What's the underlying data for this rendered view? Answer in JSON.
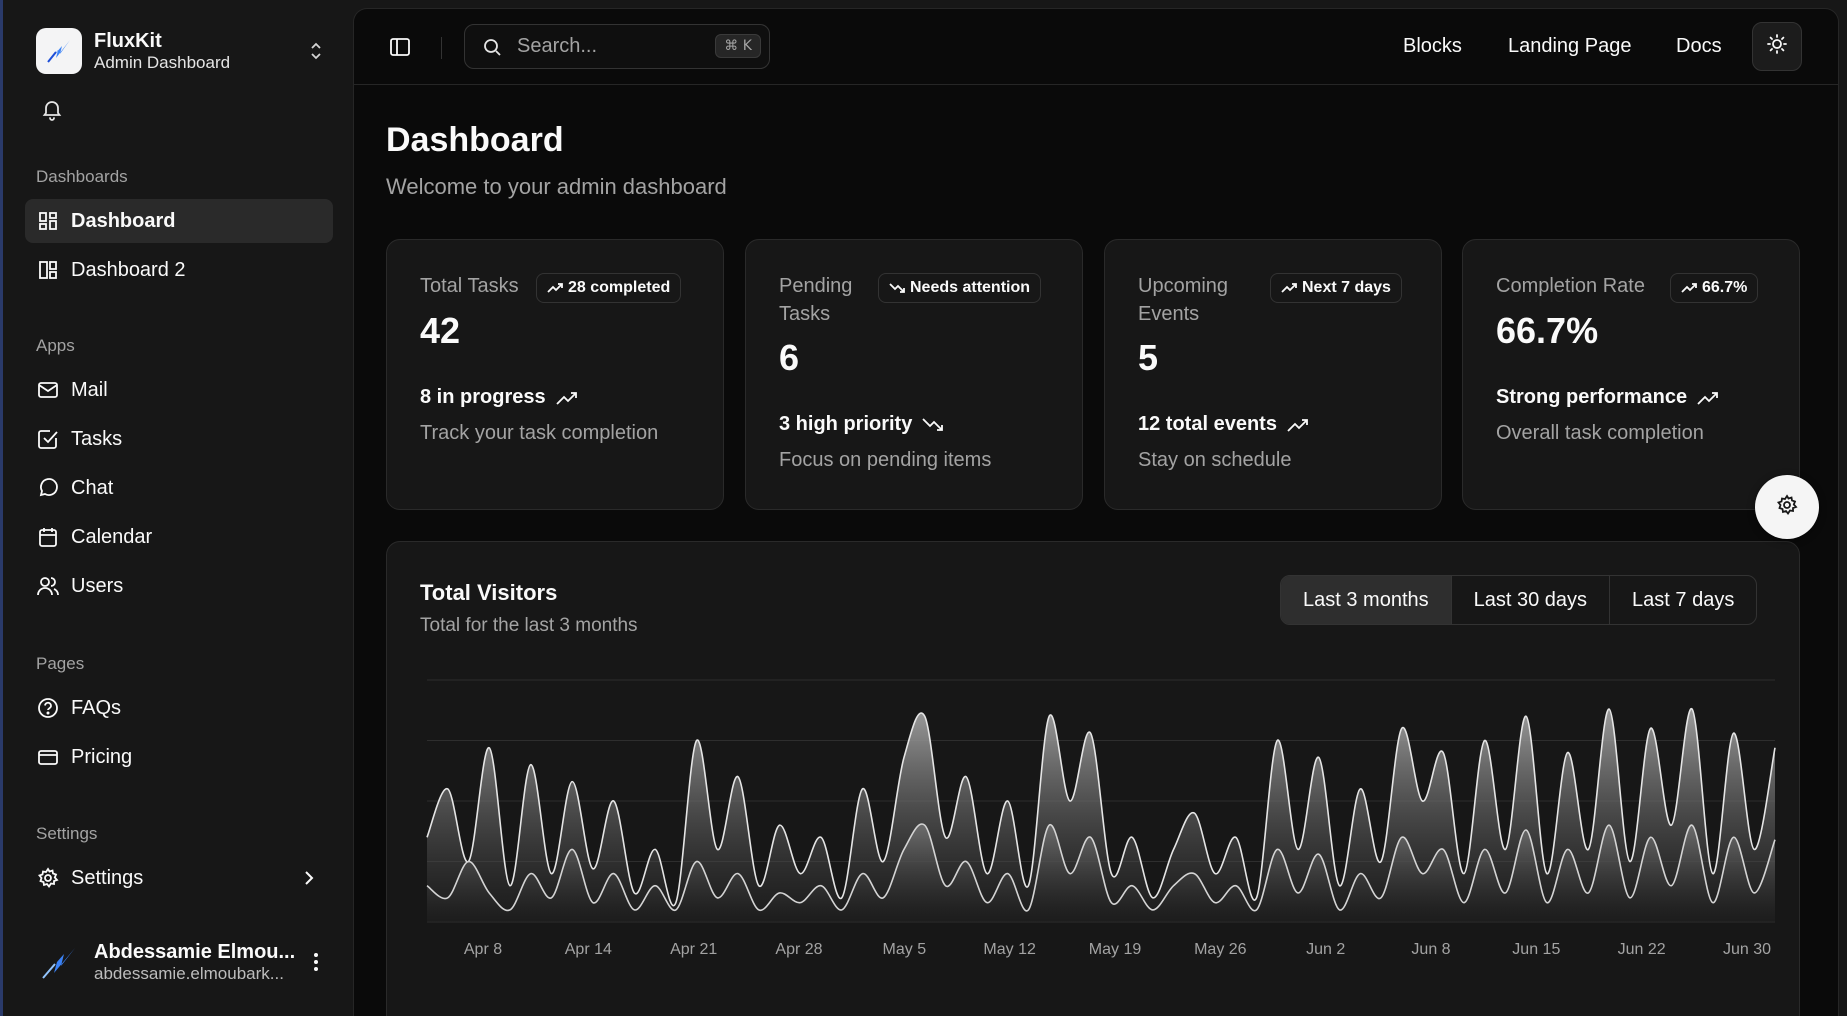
{
  "brand": {
    "name": "FluxKit",
    "subtitle": "Admin Dashboard"
  },
  "sidebar": {
    "sections": [
      {
        "label": "Dashboards"
      },
      {
        "label": "Apps"
      },
      {
        "label": "Pages"
      },
      {
        "label": "Settings"
      }
    ],
    "items": [
      {
        "label": "Dashboard",
        "icon": "layout-dashboard-icon",
        "active": true
      },
      {
        "label": "Dashboard 2",
        "icon": "layout-panels-icon"
      },
      {
        "label": "Mail",
        "icon": "mail-icon"
      },
      {
        "label": "Tasks",
        "icon": "check-square-icon"
      },
      {
        "label": "Chat",
        "icon": "message-circle-icon"
      },
      {
        "label": "Calendar",
        "icon": "calendar-icon"
      },
      {
        "label": "Users",
        "icon": "users-icon"
      },
      {
        "label": "FAQs",
        "icon": "help-circle-icon"
      },
      {
        "label": "Pricing",
        "icon": "credit-card-icon"
      },
      {
        "label": "Settings",
        "icon": "gear-icon"
      }
    ]
  },
  "user": {
    "name": "Abdessamie Elmou...",
    "email": "abdessamie.elmoubark..."
  },
  "topbar": {
    "search_placeholder": "Search...",
    "shortcut": "⌘ K",
    "links": [
      "Blocks",
      "Landing Page",
      "Docs"
    ]
  },
  "page": {
    "title": "Dashboard",
    "subtitle": "Welcome to your admin dashboard"
  },
  "cards": [
    {
      "label": "Total Tasks",
      "badge": "28 completed",
      "value": "42",
      "foot": "8 in progress",
      "note": "Track your task completion",
      "trend": "up"
    },
    {
      "label": "Pending Tasks",
      "badge": "Needs attention",
      "value": "6",
      "foot": "3 high priority",
      "note": "Focus on pending items",
      "trend": "down"
    },
    {
      "label": "Upcoming Events",
      "badge": "Next 7 days",
      "value": "5",
      "foot": "12 total events",
      "note": "Stay on schedule",
      "trend": "up"
    },
    {
      "label": "Completion Rate",
      "badge": "66.7%",
      "value": "66.7%",
      "foot": "Strong performance",
      "note": "Overall task completion",
      "trend": "up"
    }
  ],
  "visitors": {
    "title": "Total Visitors",
    "subtitle": "Total for the last 3 months",
    "ranges": [
      "Last 3 months",
      "Last 30 days",
      "Last 7 days"
    ],
    "active_range": "Last 3 months"
  },
  "chart_data": {
    "type": "area",
    "x_ticks": [
      "Apr 8",
      "Apr 14",
      "Apr 21",
      "Apr 28",
      "May 5",
      "May 12",
      "May 19",
      "May 26",
      "Jun 2",
      "Jun 8",
      "Jun 15",
      "Jun 22",
      "Jun 30"
    ],
    "grid": true,
    "series": [
      {
        "values": [
          0.35,
          0.55,
          0.25,
          0.72,
          0.15,
          0.65,
          0.2,
          0.58,
          0.22,
          0.5,
          0.12,
          0.3,
          0.08,
          0.75,
          0.3,
          0.6,
          0.15,
          0.4,
          0.2,
          0.35,
          0.1,
          0.55,
          0.25,
          0.68,
          0.85,
          0.35,
          0.6,
          0.2,
          0.5,
          0.15,
          0.85,
          0.5,
          0.78,
          0.2,
          0.35,
          0.1,
          0.3,
          0.45,
          0.2,
          0.35,
          0.1,
          0.75,
          0.3,
          0.68,
          0.15,
          0.55,
          0.25,
          0.8,
          0.5,
          0.7,
          0.2,
          0.75,
          0.3,
          0.85,
          0.2,
          0.7,
          0.3,
          0.88,
          0.25,
          0.8,
          0.4,
          0.88,
          0.2,
          0.78,
          0.3,
          0.72
        ]
      },
      {
        "values": [
          0.15,
          0.1,
          0.25,
          0.12,
          0.05,
          0.2,
          0.1,
          0.3,
          0.08,
          0.2,
          0.05,
          0.15,
          0.05,
          0.25,
          0.1,
          0.2,
          0.05,
          0.12,
          0.08,
          0.15,
          0.05,
          0.2,
          0.1,
          0.3,
          0.4,
          0.15,
          0.25,
          0.08,
          0.2,
          0.05,
          0.4,
          0.2,
          0.35,
          0.08,
          0.15,
          0.05,
          0.15,
          0.2,
          0.08,
          0.15,
          0.05,
          0.3,
          0.12,
          0.28,
          0.05,
          0.2,
          0.1,
          0.35,
          0.2,
          0.3,
          0.08,
          0.3,
          0.12,
          0.38,
          0.08,
          0.3,
          0.12,
          0.4,
          0.1,
          0.35,
          0.15,
          0.4,
          0.08,
          0.35,
          0.12,
          0.34
        ]
      }
    ]
  }
}
